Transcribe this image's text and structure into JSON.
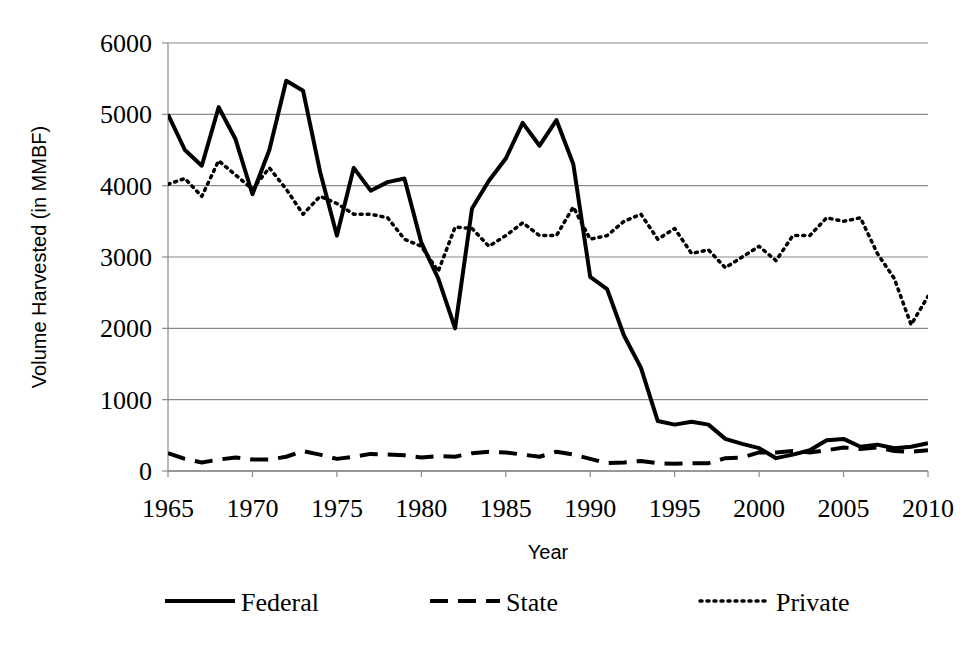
{
  "chart_data": {
    "type": "line",
    "x_label": "Year",
    "y_label": "Volume Harvested (in MMBF)",
    "x": [
      1965,
      1966,
      1967,
      1968,
      1969,
      1970,
      1971,
      1972,
      1973,
      1974,
      1975,
      1976,
      1977,
      1978,
      1979,
      1980,
      1981,
      1982,
      1983,
      1984,
      1985,
      1986,
      1987,
      1988,
      1989,
      1990,
      1991,
      1992,
      1993,
      1994,
      1995,
      1996,
      1997,
      1998,
      1999,
      2000,
      2001,
      2002,
      2003,
      2004,
      2005,
      2006,
      2007,
      2008,
      2009,
      2010
    ],
    "series": [
      {
        "name": "Federal",
        "color": "#000000",
        "line_style": "solid",
        "values": [
          5000,
          4500,
          4280,
          5100,
          4650,
          3880,
          4500,
          5470,
          5330,
          4200,
          3300,
          4250,
          3930,
          4050,
          4100,
          3200,
          2700,
          2000,
          3680,
          4070,
          4380,
          4880,
          4560,
          4920,
          4300,
          2720,
          2550,
          1900,
          1450,
          700,
          650,
          690,
          650,
          450,
          380,
          320,
          180,
          230,
          290,
          430,
          450,
          340,
          370,
          320,
          340,
          390
        ]
      },
      {
        "name": "State",
        "color": "#000000",
        "line_style": "dashed",
        "values": [
          250,
          170,
          120,
          160,
          190,
          160,
          160,
          200,
          280,
          230,
          170,
          200,
          240,
          230,
          220,
          190,
          210,
          200,
          250,
          270,
          260,
          230,
          200,
          270,
          230,
          170,
          110,
          120,
          140,
          110,
          100,
          110,
          110,
          180,
          190,
          260,
          260,
          280,
          260,
          290,
          330,
          310,
          330,
          280,
          270,
          290
        ]
      },
      {
        "name": "Private",
        "color": "#000000",
        "line_style": "dotted",
        "values": [
          4020,
          4100,
          3850,
          4350,
          4150,
          3950,
          4250,
          3950,
          3600,
          3850,
          3750,
          3600,
          3600,
          3550,
          3250,
          3150,
          2800,
          3420,
          3400,
          3150,
          3300,
          3480,
          3300,
          3300,
          3700,
          3250,
          3300,
          3500,
          3600,
          3250,
          3400,
          3050,
          3100,
          2850,
          3000,
          3150,
          2950,
          3300,
          3300,
          3550,
          3500,
          3550,
          3050,
          2700,
          2050,
          2450
        ]
      }
    ],
    "xlim": [
      1965,
      2010
    ],
    "ylim": [
      0,
      6000
    ],
    "xticks": [
      1965,
      1970,
      1975,
      1980,
      1985,
      1990,
      1995,
      2000,
      2005,
      2010
    ],
    "yticks": [
      0,
      1000,
      2000,
      3000,
      4000,
      5000,
      6000
    ],
    "grid": true,
    "legend": "bottom"
  }
}
